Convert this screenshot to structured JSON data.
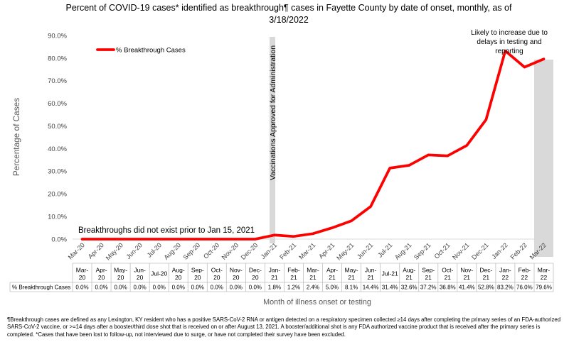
{
  "chart_data": {
    "type": "line",
    "title": "Percent of COVID-19 cases* identified as breakthrough¶ cases in Fayette County by date of onset, monthly, as of 3/18/2022",
    "xlabel": "Month of illness onset or testing",
    "ylabel": "Percentage of Cases",
    "ylim": [
      0,
      90
    ],
    "yticks": [
      "0.0%",
      "10.0%",
      "20.0%",
      "30.0%",
      "40.0%",
      "50.0%",
      "60.0%",
      "70.0%",
      "80.0%",
      "90.0%"
    ],
    "categories": [
      "Mar-20",
      "Apr-20",
      "May-20",
      "Jun-20",
      "Jul-20",
      "Aug-20",
      "Sep-20",
      "Oct-20",
      "Nov-20",
      "Dec-20",
      "Jan-21",
      "Feb-21",
      "Mar-21",
      "Apr-21",
      "May-21",
      "Jun-21",
      "Jul-21",
      "Aug-21",
      "Sep-21",
      "Oct-21",
      "Nov-21",
      "Dec-21",
      "Jan-22",
      "Feb-22",
      "Mar-22"
    ],
    "series": [
      {
        "name": "% Breakthrough Cases",
        "color": "#ff0000",
        "values": [
          0.0,
          0.0,
          0.0,
          0.0,
          0.0,
          0.0,
          0.0,
          0.0,
          0.0,
          0.0,
          1.8,
          1.2,
          2.4,
          5.0,
          8.1,
          14.4,
          31.4,
          32.6,
          37.2,
          36.8,
          41.4,
          52.8,
          83.2,
          76.0,
          79.6
        ]
      }
    ],
    "legend": "top-left",
    "grid": false,
    "highlight_color": "#d9d9d9",
    "annotations": {
      "vaccination": "Vaccinations Approved for Administration",
      "pre_breakthrough": "Breakthroughs did not exist prior to Jan 15, 2021",
      "reporting_delay": "Likely to increase due to delays in testing and reporting"
    },
    "data_table": {
      "row_label": "% Breakthrough Cases",
      "cells": [
        "0.0%",
        "0.0%",
        "0.0%",
        "0.0%",
        "0.0%",
        "0.0%",
        "0.0%",
        "0.0%",
        "0.0%",
        "0.0%",
        "1.8%",
        "1.2%",
        "2.4%",
        "5.0%",
        "8.1%",
        "14.4%",
        "31.4%",
        "32.6%",
        "37.2%",
        "36.8%",
        "41.4%",
        "52.8%",
        "83.2%",
        "76.0%",
        "79.6%"
      ]
    }
  },
  "footnote": "¶Breakthrough cases are defined as any Lexington, KY resident who has a positive SARS-CoV-2 RNA or antigen detected on a respiratory specimen collected ≥14 days after completing the primary series of an FDA-authorized SARS-CoV-2 vaccine, or >=14 days after a booster/third dose shot that is received on or after August 13, 2021.  A booster/additional shot is any FDA authorized vaccine product that is received after the primary series is completed.  *Cases that have been lost to follow-up, not interviewed due to surge, or have not completed their survey have been excluded."
}
